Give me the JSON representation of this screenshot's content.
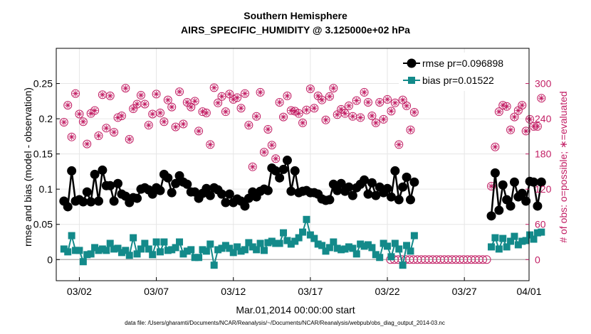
{
  "chart_data": {
    "type": "line",
    "title": "Southern Hemisphere",
    "subtitle": "AIRS_SPECIFIC_HUMIDITY @ 3.125000e+02 hPa",
    "xlabel": "Mar.01,2014 00:00:00 start",
    "ylabel": "rmse and bias (model - observation)",
    "ylabel_right": "# of obs: o=possible; ∗=evaluated",
    "footnote": "data file: /Users/gharamti/Documents/NCAR/Reanalysis/~/Documents/NCAR/Reanalysis/webpub/obs_diag_output_2014-03.nc",
    "xlim": [
      0.5,
      31.2
    ],
    "ylim": [
      -0.03,
      0.3
    ],
    "ylim_right": [
      -36,
      360
    ],
    "x_tick_values": [
      2,
      7,
      12,
      17,
      22,
      27,
      32
    ],
    "x_tick_labels": [
      "03/02",
      "03/07",
      "03/12",
      "03/17",
      "03/22",
      "03/27",
      "04/01"
    ],
    "y_ticks": [
      "0",
      "0.05",
      "0.1",
      "0.15",
      "0.2",
      "0.25"
    ],
    "y_tick_values": [
      0,
      0.05,
      0.1,
      0.15,
      0.2,
      0.25
    ],
    "y_ticks_right": [
      "0",
      "60",
      "120",
      "180",
      "240",
      "300"
    ],
    "y_tick_values_right": [
      0,
      60,
      120,
      180,
      240,
      300
    ],
    "colors": {
      "rmse": "#000000",
      "bias": "#138a8a",
      "obs": "#c21e64",
      "zero_line": "#b4b4b4",
      "grid": "#e6e6e6"
    },
    "series": [
      {
        "name": "rmse",
        "legend": "rmse pr=0.096898",
        "x_start": 1.0,
        "x_step": 0.25,
        "values": [
          0.083,
          0.075,
          0.126,
          0.083,
          0.085,
          0.082,
          0.096,
          0.082,
          0.121,
          0.083,
          0.127,
          0.105,
          0.105,
          0.083,
          0.108,
          0.093,
          0.09,
          0.081,
          0.088,
          0.087,
          0.1,
          0.102,
          0.099,
          0.093,
          0.102,
          0.098,
          0.121,
          0.116,
          0.095,
          0.108,
          0.119,
          0.11,
          0.107,
          0.096,
          0.096,
          0.087,
          0.094,
          0.101,
          0.091,
          0.102,
          0.099,
          0.093,
          0.081,
          0.093,
          0.081,
          0.086,
          0.083,
          0.076,
          0.087,
          0.096,
          0.089,
          0.097,
          0.1,
          0.098,
          0.13,
          0.126,
          0.116,
          0.128,
          0.141,
          0.097,
          0.126,
          0.095,
          0.097,
          0.098,
          0.095,
          0.095,
          0.093,
          0.086,
          0.084,
          0.085,
          0.107,
          0.098,
          0.108,
          0.097,
          0.103,
          0.091,
          0.102,
          0.107,
          0.113,
          0.093,
          0.109,
          0.091,
          0.103,
          0.095,
          0.101,
          0.089,
          0.126,
          0.085,
          0.103,
          0.117,
          0.085,
          0.11
        ],
        "segments": [
          {
            "x_start": 28.75,
            "x_step": 0.25,
            "values": [
              0.062,
              0.123,
              0.07,
              0.106,
              0.085,
              0.076,
              0.11,
              0.089,
              0.094,
              0.083,
              0.111,
              0.11,
              0.076,
              0.11
            ]
          }
        ]
      },
      {
        "name": "bias",
        "legend": "bias pr=0.01522",
        "x_start": 1.0,
        "x_step": 0.25,
        "values": [
          0.015,
          0.011,
          0.034,
          0.013,
          0.013,
          -0.003,
          0.007,
          0.008,
          0.017,
          0.013,
          0.015,
          0.013,
          0.023,
          0.015,
          0.016,
          0.01,
          0.013,
          0.006,
          0.031,
          0.008,
          0.015,
          0.023,
          0.015,
          0.007,
          0.025,
          0.011,
          0.025,
          0.013,
          0.014,
          0.017,
          0.025,
          0.008,
          0.012,
          0.014,
          0.003,
          0.003,
          0.014,
          0.012,
          0.022,
          -0.008,
          0.014,
          0.016,
          0.02,
          0.016,
          0.01,
          0.018,
          0.012,
          0.014,
          0.024,
          0.018,
          0.014,
          0.023,
          0.013,
          0.024,
          0.026,
          0.023,
          0.023,
          0.038,
          0.027,
          0.022,
          0.026,
          0.031,
          0.039,
          0.057,
          0.035,
          0.03,
          0.022,
          0.02,
          0.012,
          0.017,
          0.025,
          0.016,
          0.014,
          0.015,
          0.018,
          0.016,
          0.008,
          0.022,
          0.019,
          0.021,
          0.017,
          0.007,
          0.003,
          0.023,
          0.019,
          0.004,
          0.023,
          0.015,
          -0.008,
          0.02,
          0.012,
          0.034
        ],
        "segments": [
          {
            "x_start": 28.75,
            "x_step": 0.25,
            "values": [
              0.018,
              0.031,
              0.015,
              0.03,
              0.018,
              0.026,
              0.033,
              0.021,
              0.026,
              0.027,
              0.035,
              0.029,
              0.038,
              0.039
            ]
          }
        ]
      },
      {
        "name": "obs_possible",
        "axis": "right",
        "x_start": 1.0,
        "x_step": 0.25,
        "values": [
          234,
          263,
          209,
          283,
          248,
          235,
          197,
          249,
          254,
          211,
          281,
          224,
          279,
          217,
          242,
          245,
          292,
          205,
          257,
          265,
          280,
          265,
          229,
          248,
          282,
          250,
          235,
          272,
          260,
          226,
          286,
          231,
          268,
          260,
          270,
          219,
          252,
          250,
          196,
          293,
          267,
          278,
          252,
          282,
          273,
          276,
          258,
          283,
          229,
          158,
          244,
          285,
          183,
          222,
          195,
          172,
          268,
          243,
          279,
          254,
          253,
          249,
          233,
          255,
          291,
          258,
          279,
          272,
          238,
          278,
          292,
          247,
          256,
          249,
          262,
          244,
          271,
          242,
          285,
          268,
          245,
          233,
          268,
          239,
          273,
          253,
          267,
          196,
          272,
          262,
          221,
          251
        ],
        "segments": [
          {
            "x_start": 22.2,
            "x_step": 0.25,
            "values": [
              0,
              0,
              0,
              0,
              0,
              0,
              0,
              0,
              0,
              0,
              0,
              0,
              0,
              0,
              0,
              0,
              0,
              0,
              0,
              0,
              0,
              0,
              0,
              0,
              0,
              0
            ]
          },
          {
            "x_start": 28.75,
            "x_step": 0.25,
            "values": [
              125,
              192,
              252,
              263,
              261,
              221,
              243,
              254,
              263,
              219,
              239,
              227,
              227,
              275
            ]
          }
        ]
      },
      {
        "name": "obs_evaluated",
        "axis": "right",
        "x_start": 1.0,
        "x_step": 0.25,
        "values": [
          234,
          263,
          209,
          283,
          248,
          235,
          197,
          249,
          254,
          211,
          281,
          224,
          279,
          217,
          242,
          245,
          292,
          205,
          257,
          265,
          280,
          265,
          229,
          248,
          282,
          250,
          235,
          272,
          260,
          226,
          286,
          231,
          268,
          260,
          270,
          219,
          252,
          250,
          196,
          293,
          267,
          278,
          252,
          282,
          273,
          276,
          258,
          283,
          229,
          158,
          244,
          285,
          183,
          222,
          195,
          172,
          268,
          243,
          279,
          254,
          253,
          249,
          233,
          255,
          291,
          258,
          279,
          272,
          238,
          278,
          292,
          247,
          256,
          249,
          262,
          244,
          271,
          242,
          285,
          268,
          245,
          233,
          268,
          239,
          273,
          253,
          267,
          196,
          272,
          262,
          221,
          251
        ],
        "segments": [
          {
            "x_start": 28.75,
            "x_step": 0.25,
            "values": [
              125,
              192,
              252,
              263,
              261,
              221,
              243,
              254,
              263,
              219,
              239,
              227,
              227,
              275
            ]
          }
        ]
      }
    ]
  }
}
